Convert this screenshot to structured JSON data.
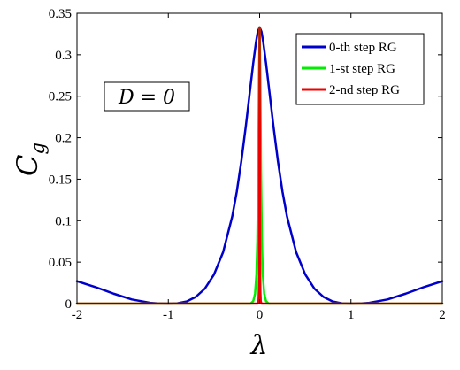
{
  "chart_data": {
    "type": "line",
    "xlabel": "λ",
    "ylabel": "C",
    "ylabel_sub": "g",
    "xlim": [
      -2,
      2
    ],
    "ylim": [
      0,
      0.35
    ],
    "xticks": [
      "-2",
      "-1",
      "0",
      "1",
      "2"
    ],
    "yticks": [
      "0",
      "0.05",
      "0.1",
      "0.15",
      "0.2",
      "0.25",
      "0.3",
      "0.35"
    ],
    "annotation": "D = 0",
    "legend_position": "top-right",
    "grid": false,
    "series": [
      {
        "name": "0-th step RG",
        "color": "#0000cc",
        "x": [
          -2.0,
          -1.8,
          -1.6,
          -1.4,
          -1.2,
          -1.1,
          -1.0,
          -0.9,
          -0.8,
          -0.7,
          -0.6,
          -0.5,
          -0.4,
          -0.3,
          -0.25,
          -0.2,
          -0.15,
          -0.1,
          -0.07,
          -0.04,
          -0.02,
          0.0,
          0.02,
          0.04,
          0.07,
          0.1,
          0.15,
          0.2,
          0.25,
          0.3,
          0.4,
          0.5,
          0.6,
          0.7,
          0.8,
          0.9,
          1.0,
          1.1,
          1.2,
          1.4,
          1.6,
          1.8,
          2.0
        ],
        "y": [
          0.027,
          0.02,
          0.012,
          0.005,
          0.001,
          0.0002,
          0.0,
          0.0004,
          0.0025,
          0.008,
          0.018,
          0.035,
          0.062,
          0.105,
          0.135,
          0.172,
          0.215,
          0.262,
          0.29,
          0.315,
          0.328,
          0.333,
          0.328,
          0.315,
          0.29,
          0.262,
          0.215,
          0.172,
          0.135,
          0.105,
          0.062,
          0.035,
          0.018,
          0.008,
          0.0025,
          0.0004,
          0.0,
          0.0002,
          0.001,
          0.005,
          0.012,
          0.02,
          0.027
        ]
      },
      {
        "name": "1-st step RG",
        "color": "#00ee00",
        "x": [
          -2.0,
          -0.1,
          -0.07,
          -0.05,
          -0.035,
          -0.025,
          -0.015,
          -0.008,
          0.0,
          0.008,
          0.015,
          0.025,
          0.035,
          0.05,
          0.07,
          0.1,
          2.0
        ],
        "y": [
          0.0,
          0.0,
          0.003,
          0.012,
          0.035,
          0.075,
          0.16,
          0.27,
          0.333,
          0.27,
          0.16,
          0.075,
          0.035,
          0.012,
          0.003,
          0.0,
          0.0
        ]
      },
      {
        "name": "2-nd step RG",
        "color": "#ee0000",
        "x": [
          -2.0,
          -0.02,
          -0.012,
          -0.008,
          -0.005,
          -0.002,
          0.0,
          0.002,
          0.005,
          0.008,
          0.012,
          0.02,
          2.0
        ],
        "y": [
          0.0,
          0.0,
          0.003,
          0.015,
          0.055,
          0.22,
          0.333,
          0.22,
          0.055,
          0.015,
          0.003,
          0.0,
          0.0
        ]
      }
    ]
  }
}
